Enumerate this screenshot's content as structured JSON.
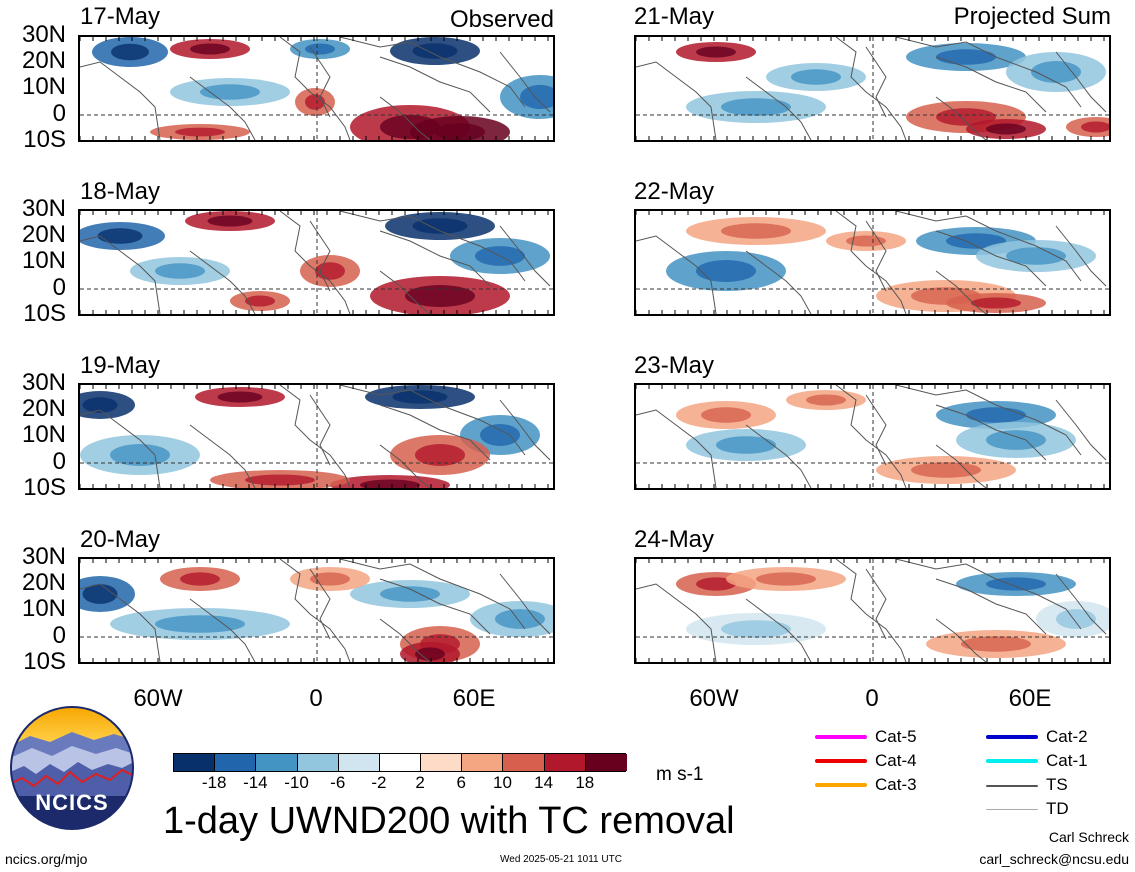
{
  "header": {
    "observed_label": "Observed",
    "projected_label": "Projected Sum"
  },
  "panels": [
    {
      "date": "17-May",
      "kind": "observed"
    },
    {
      "date": "18-May",
      "kind": "observed"
    },
    {
      "date": "19-May",
      "kind": "observed"
    },
    {
      "date": "20-May",
      "kind": "observed"
    },
    {
      "date": "21-May",
      "kind": "projected"
    },
    {
      "date": "22-May",
      "kind": "projected"
    },
    {
      "date": "23-May",
      "kind": "projected"
    },
    {
      "date": "24-May",
      "kind": "projected"
    }
  ],
  "lat_labels": [
    "30N",
    "20N",
    "10N",
    "0",
    "10S"
  ],
  "lon_labels": [
    "60W",
    "0",
    "60E"
  ],
  "colorbar": {
    "ticks": [
      "-18",
      "-14",
      "-10",
      "-6",
      "-2",
      "2",
      "6",
      "10",
      "14",
      "18"
    ],
    "colors": [
      "#08306b",
      "#2166ac",
      "#4393c3",
      "#92c5de",
      "#d1e5f0",
      "#ffffff",
      "#fddbc7",
      "#f4a582",
      "#d6604d",
      "#b2182b",
      "#67001f"
    ],
    "units": "m s-1"
  },
  "tc_legend": [
    {
      "label": "Cat-5",
      "color": "#ff00ff"
    },
    {
      "label": "Cat-4",
      "color": "#ee0000"
    },
    {
      "label": "Cat-3",
      "color": "#ffa500"
    },
    {
      "label": "Cat-2",
      "color": "#0000cc"
    },
    {
      "label": "Cat-1",
      "color": "#00eeee"
    },
    {
      "label": "TS",
      "color": "#555555"
    },
    {
      "label": "TD",
      "color": "#aaaaaa"
    }
  ],
  "logo": {
    "text": "NCICS"
  },
  "title": "1-day UWND200 with TC removal",
  "footer": {
    "left": "ncics.org/mjo",
    "center": "Wed 2025-05-21 1011 UTC",
    "author": "Carl Schreck",
    "email": "carl_schreck@ncsu.edu"
  }
}
